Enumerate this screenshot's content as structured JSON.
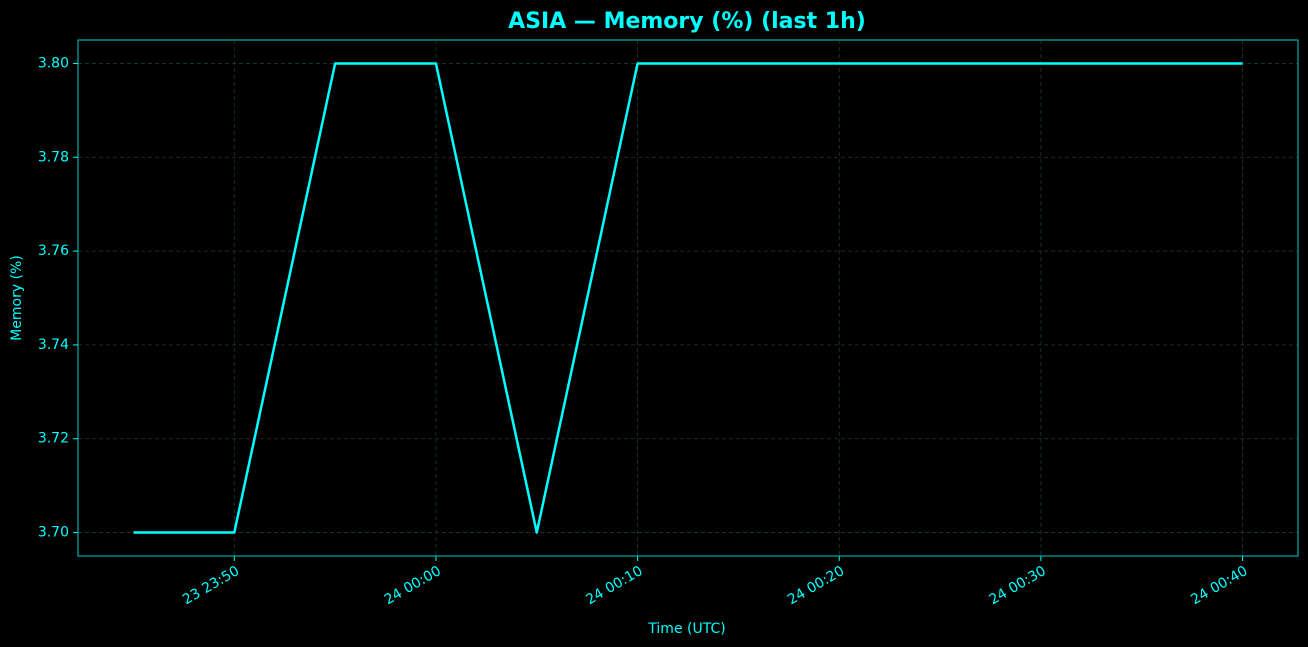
{
  "chart_data": {
    "type": "line",
    "title": "ASIA — Memory (%) (last 1h)",
    "xlabel": "Time (UTC)",
    "ylabel": "Memory (%)",
    "x": [
      "23 23:45",
      "23 23:50",
      "23 23:55",
      "24 00:00",
      "24 00:05",
      "24 00:10",
      "24 00:15",
      "24 00:20",
      "24 00:25",
      "24 00:30",
      "24 00:35",
      "24 00:40"
    ],
    "values": [
      3.7,
      3.7,
      3.8,
      3.8,
      3.7,
      3.8,
      3.8,
      3.8,
      3.8,
      3.8,
      3.8,
      3.8
    ],
    "color": "#00ffff",
    "xticks": [
      "23 23:50",
      "24 00:00",
      "24 00:10",
      "24 00:20",
      "24 00:30",
      "24 00:40"
    ],
    "ylim": [
      3.695,
      3.805
    ],
    "yticks": [
      {
        "value": 3.7,
        "label": "3.70"
      },
      {
        "value": 3.72,
        "label": "3.72"
      },
      {
        "value": 3.74,
        "label": "3.74"
      },
      {
        "value": 3.76,
        "label": "3.76"
      },
      {
        "value": 3.78,
        "label": "3.78"
      },
      {
        "value": 3.8,
        "label": "3.80"
      }
    ],
    "grid": true
  }
}
